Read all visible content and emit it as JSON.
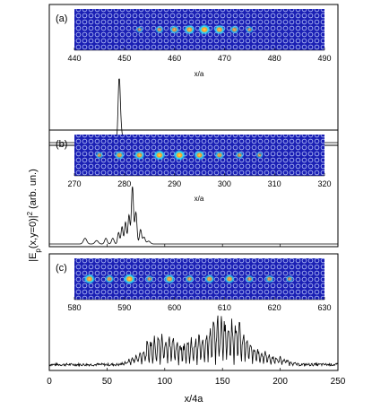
{
  "figure": {
    "ylabel": "|E_p(x,y=0)|² (arb. un.)",
    "ylabel_main": "|E",
    "ylabel_sub": "p",
    "ylabel_rest": "(x,y=0)|",
    "ylabel_sup": "2",
    "ylabel_tail": " (arb. un.)"
  },
  "chart_data": [
    {
      "type": "line",
      "panel_label": "(a)",
      "inset": {
        "xlabel": "x/a",
        "xlim": [
          440,
          490
        ],
        "xticks": [
          440,
          450,
          460,
          470,
          480,
          490
        ],
        "spots": [
          {
            "x": 453,
            "strength": 0.35
          },
          {
            "x": 457,
            "strength": 0.5
          },
          {
            "x": 460,
            "strength": 0.65
          },
          {
            "x": 463,
            "strength": 0.85
          },
          {
            "x": 466,
            "strength": 1.0
          },
          {
            "x": 469,
            "strength": 0.85
          },
          {
            "x": 472,
            "strength": 0.6
          },
          {
            "x": 475,
            "strength": 0.4
          }
        ]
      },
      "peaks": [
        {
          "x": 60.5,
          "h": 1.0,
          "w": 1.3
        },
        {
          "x": 62.2,
          "h": 0.18,
          "w": 1.5
        }
      ]
    },
    {
      "type": "line",
      "panel_label": "(b)",
      "inset": {
        "xlabel": "x/a",
        "xlim": [
          270,
          320
        ],
        "xticks": [
          270,
          280,
          290,
          300,
          310,
          320
        ],
        "spots": [
          {
            "x": 275,
            "strength": 0.45
          },
          {
            "x": 279,
            "strength": 0.7
          },
          {
            "x": 283,
            "strength": 0.8
          },
          {
            "x": 287,
            "strength": 0.95
          },
          {
            "x": 291,
            "strength": 1.0
          },
          {
            "x": 295,
            "strength": 0.85
          },
          {
            "x": 299,
            "strength": 0.65
          },
          {
            "x": 303,
            "strength": 0.5
          },
          {
            "x": 307,
            "strength": 0.35
          }
        ]
      },
      "peaks": [
        {
          "x": 31,
          "h": 0.1,
          "w": 2
        },
        {
          "x": 41,
          "h": 0.06,
          "w": 2
        },
        {
          "x": 49,
          "h": 0.1,
          "w": 1.5
        },
        {
          "x": 55,
          "h": 0.1,
          "w": 1.5
        },
        {
          "x": 60,
          "h": 0.2,
          "w": 1.2
        },
        {
          "x": 63,
          "h": 0.3,
          "w": 1.2
        },
        {
          "x": 66,
          "h": 0.38,
          "w": 1.2
        },
        {
          "x": 69,
          "h": 0.5,
          "w": 1.2
        },
        {
          "x": 72,
          "h": 1.0,
          "w": 1.3
        },
        {
          "x": 75,
          "h": 0.55,
          "w": 1.3
        },
        {
          "x": 79,
          "h": 0.25,
          "w": 1.3
        },
        {
          "x": 82,
          "h": 0.12,
          "w": 1.5
        },
        {
          "x": 86,
          "h": 0.05,
          "w": 2
        }
      ]
    },
    {
      "type": "line",
      "panel_label": "(c)",
      "xlabel": "x/4a",
      "xlim": [
        0,
        250
      ],
      "xticks": [
        0,
        50,
        100,
        150,
        200,
        250
      ],
      "inset": {
        "xlabel": "",
        "xlim": [
          580,
          630
        ],
        "xticks": [
          580,
          590,
          600,
          610,
          620,
          630
        ],
        "spots": [
          {
            "x": 583,
            "strength": 0.9
          },
          {
            "x": 587,
            "strength": 0.6
          },
          {
            "x": 591,
            "strength": 1.0
          },
          {
            "x": 595,
            "strength": 0.45
          },
          {
            "x": 599,
            "strength": 0.8
          },
          {
            "x": 603,
            "strength": 0.55
          },
          {
            "x": 607,
            "strength": 0.7
          },
          {
            "x": 611,
            "strength": 0.75
          },
          {
            "x": 615,
            "strength": 0.5
          },
          {
            "x": 619,
            "strength": 0.55
          },
          {
            "x": 623,
            "strength": 0.4
          }
        ]
      },
      "envelope": {
        "noise_floor": 0.07,
        "x_start": 60,
        "x_end": 215,
        "peak_x": 140,
        "peak_h": 0.9,
        "oscillation_period": 3.2
      }
    }
  ]
}
